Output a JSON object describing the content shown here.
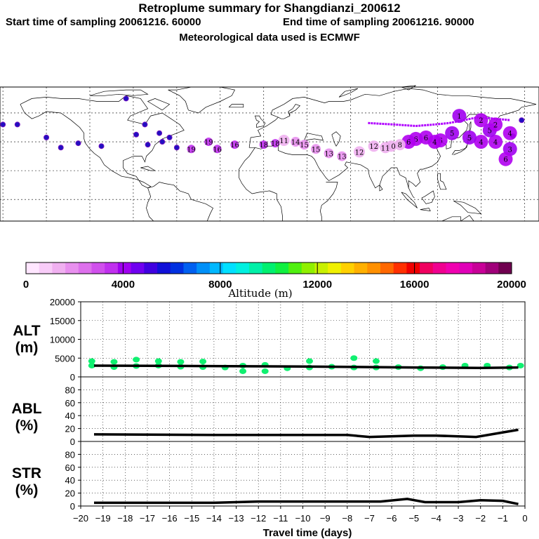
{
  "header": {
    "title": "Retroplume summary for Shangdianzi_200612",
    "start_sampling": "Start time of sampling 20061216. 60000",
    "end_sampling": "End time of sampling 20061216. 90000",
    "met_data": "Meteorological data used is ECMWF"
  },
  "colors": {
    "altitude_scale": [
      "#ffe6ff",
      "#f8ccf8",
      "#f0b0f0",
      "#e890ee",
      "#dd70ec",
      "#d050ec",
      "#c030ee",
      "#a000f0",
      "#7000f0",
      "#4000e0",
      "#1010d8",
      "#0030e0",
      "#0060f0",
      "#0090f8",
      "#00b8ff",
      "#00e0ff",
      "#00f0e0",
      "#00f0a8",
      "#00f070",
      "#10f040",
      "#50f010",
      "#90f000",
      "#c8f000",
      "#f0f000",
      "#ffd000",
      "#ffb000",
      "#ff9000",
      "#ff6800",
      "#ff3000",
      "#f00000",
      "#f00060",
      "#f00090",
      "#f000b0",
      "#e000b8",
      "#c80098",
      "#a0007a",
      "#700050"
    ],
    "trajectory_line": "#b000ff",
    "alt_points": "#10f070"
  },
  "map": {
    "plumes": [
      {
        "lon": 170,
        "lat": 35,
        "label": "3"
      },
      {
        "lon": 170,
        "lat": 46,
        "label": "4"
      },
      {
        "lon": 167,
        "lat": 28,
        "label": "6"
      },
      {
        "lon": 160,
        "lat": 40,
        "label": "4"
      },
      {
        "lon": 156,
        "lat": 48,
        "label": "5"
      },
      {
        "lon": 150,
        "lat": 40,
        "label": "4"
      },
      {
        "lon": 142,
        "lat": 43,
        "label": "5"
      },
      {
        "lon": 130,
        "lat": 46,
        "label": "5"
      },
      {
        "lon": 122,
        "lat": 41,
        "label": "6"
      },
      {
        "lon": 118,
        "lat": 40,
        "label": "4"
      },
      {
        "lon": 112,
        "lat": 43,
        "label": "6"
      },
      {
        "lon": 105,
        "lat": 42,
        "label": "6"
      },
      {
        "lon": 100,
        "lat": 40,
        "label": "6"
      },
      {
        "lon": 94,
        "lat": 38,
        "label": "8"
      },
      {
        "lon": 88,
        "lat": 37,
        "label": "10"
      },
      {
        "lon": 84,
        "lat": 36,
        "label": "11"
      },
      {
        "lon": 76,
        "lat": 37,
        "label": "12"
      },
      {
        "lon": 66,
        "lat": 33,
        "label": "12"
      },
      {
        "lon": 54,
        "lat": 30,
        "label": "13"
      },
      {
        "lon": 45,
        "lat": 32,
        "label": "13"
      },
      {
        "lon": 36,
        "lat": 35,
        "label": "15"
      },
      {
        "lon": 28,
        "lat": 38,
        "label": "15"
      },
      {
        "lon": 22,
        "lat": 40,
        "label": "14"
      },
      {
        "lon": 14,
        "lat": 41,
        "label": "11"
      },
      {
        "lon": 8,
        "lat": 39,
        "label": "18"
      },
      {
        "lon": 0,
        "lat": 38,
        "label": "18"
      },
      {
        "lon": -20,
        "lat": 38,
        "label": "16"
      },
      {
        "lon": -32,
        "lat": 35,
        "label": "16"
      },
      {
        "lon": -38,
        "lat": 40,
        "label": "19"
      },
      {
        "lon": -50,
        "lat": 35,
        "label": "19"
      },
      {
        "lon": 135,
        "lat": 58,
        "label": "1"
      },
      {
        "lon": 150,
        "lat": 55,
        "label": "2"
      },
      {
        "lon": 160,
        "lat": 52,
        "label": "2"
      }
    ],
    "blue_dots": [
      {
        "lon": -180,
        "lat": 52
      },
      {
        "lon": -170,
        "lat": 52
      },
      {
        "lon": -150,
        "lat": 43
      },
      {
        "lon": -140,
        "lat": 36
      },
      {
        "lon": -128,
        "lat": 39
      },
      {
        "lon": -112,
        "lat": 37
      },
      {
        "lon": -95,
        "lat": 70
      },
      {
        "lon": -82,
        "lat": 52
      },
      {
        "lon": -80,
        "lat": 38
      },
      {
        "lon": -72,
        "lat": 46
      },
      {
        "lon": -70,
        "lat": 40
      },
      {
        "lon": -65,
        "lat": 43
      },
      {
        "lon": -60,
        "lat": 36
      },
      {
        "lon": -88,
        "lat": 45
      },
      {
        "lon": 178,
        "lat": 55
      },
      {
        "lon": 172,
        "lat": 44
      }
    ],
    "trajectory": [
      [
        72,
        53
      ],
      [
        90,
        52
      ],
      [
        105,
        51
      ],
      [
        118,
        52
      ],
      [
        128,
        53
      ],
      [
        138,
        55
      ],
      [
        148,
        57
      ],
      [
        160,
        56
      ],
      [
        170,
        55
      ]
    ]
  },
  "colorbar": {
    "min_label": "0",
    "ticks": [
      "0",
      "4000",
      "8000",
      "12000",
      "16000",
      "20000"
    ],
    "title": "Altitude (m)"
  },
  "chart_data": [
    {
      "type": "scatter",
      "title": "ALT (m)",
      "panel_label_1": "ALT",
      "panel_label_2": "(m)",
      "xlim": [
        -20,
        0
      ],
      "ylim": [
        0,
        20000
      ],
      "yticks": [
        "0",
        "5000",
        "10000",
        "15000",
        "20000"
      ],
      "mean_line": [
        {
          "x": -19.4,
          "y": 3000
        },
        {
          "x": -15,
          "y": 2900
        },
        {
          "x": -10,
          "y": 2750
        },
        {
          "x": -5,
          "y": 2500
        },
        {
          "x": -2,
          "y": 2400
        },
        {
          "x": -0.3,
          "y": 2500
        }
      ],
      "points": [
        {
          "x": -19.5,
          "y": 3000
        },
        {
          "x": -19.5,
          "y": 4200
        },
        {
          "x": -18.5,
          "y": 2600
        },
        {
          "x": -18.5,
          "y": 4000
        },
        {
          "x": -17.5,
          "y": 2900
        },
        {
          "x": -17.5,
          "y": 4600
        },
        {
          "x": -16.5,
          "y": 3000
        },
        {
          "x": -16.5,
          "y": 4200
        },
        {
          "x": -15.5,
          "y": 2700
        },
        {
          "x": -15.5,
          "y": 4000
        },
        {
          "x": -14.5,
          "y": 2600
        },
        {
          "x": -14.5,
          "y": 4100
        },
        {
          "x": -13.5,
          "y": 2500
        },
        {
          "x": -12.7,
          "y": 3000
        },
        {
          "x": -12.7,
          "y": 1500
        },
        {
          "x": -11.7,
          "y": 1500
        },
        {
          "x": -11.7,
          "y": 3200
        },
        {
          "x": -10.7,
          "y": 2300
        },
        {
          "x": -9.7,
          "y": 2500
        },
        {
          "x": -9.7,
          "y": 4200
        },
        {
          "x": -8.7,
          "y": 2700
        },
        {
          "x": -7.7,
          "y": 2500
        },
        {
          "x": -7.7,
          "y": 5000
        },
        {
          "x": -6.7,
          "y": 2500
        },
        {
          "x": -6.7,
          "y": 4200
        },
        {
          "x": -5.7,
          "y": 2600
        },
        {
          "x": -4.7,
          "y": 2300
        },
        {
          "x": -3.7,
          "y": 2600
        },
        {
          "x": -2.7,
          "y": 3000
        },
        {
          "x": -1.7,
          "y": 3000
        },
        {
          "x": -0.7,
          "y": 2500
        },
        {
          "x": -0.2,
          "y": 3000
        }
      ]
    },
    {
      "type": "line",
      "title": "ABL (%)",
      "panel_label_1": "ABL",
      "panel_label_2": "(%)",
      "xlim": [
        -20,
        0
      ],
      "ylim": [
        0,
        100
      ],
      "yticks": [
        "0",
        "20",
        "40",
        "60",
        "80"
      ],
      "series": [
        {
          "name": "ABL",
          "x": [
            -19.4,
            -14,
            -8,
            -7,
            -5,
            -4,
            -2.2,
            -0.3
          ],
          "y": [
            11,
            10,
            10,
            7,
            9,
            9,
            7,
            18
          ]
        }
      ]
    },
    {
      "type": "line",
      "title": "STR (%)",
      "panel_label_1": "STR",
      "panel_label_2": "(%)",
      "xlim": [
        -20,
        0
      ],
      "ylim": [
        0,
        100
      ],
      "yticks": [
        "0",
        "20",
        "40",
        "60",
        "80"
      ],
      "xticks": [
        "−20",
        "−19",
        "−18",
        "−17",
        "−16",
        "−15",
        "−14",
        "−13",
        "−12",
        "−11",
        "−10",
        "−9",
        "−8",
        "−7",
        "−6",
        "−5",
        "−4",
        "−3",
        "−2",
        "−1",
        "0"
      ],
      "xlabel": "Travel time (days)",
      "series": [
        {
          "name": "STR",
          "x": [
            -19.4,
            -14,
            -12,
            -9,
            -6.5,
            -5.3,
            -4.5,
            -3,
            -2,
            -1,
            -0.3
          ],
          "y": [
            5,
            5,
            7,
            7,
            7,
            11,
            6,
            6,
            9,
            8,
            3
          ]
        }
      ]
    }
  ]
}
